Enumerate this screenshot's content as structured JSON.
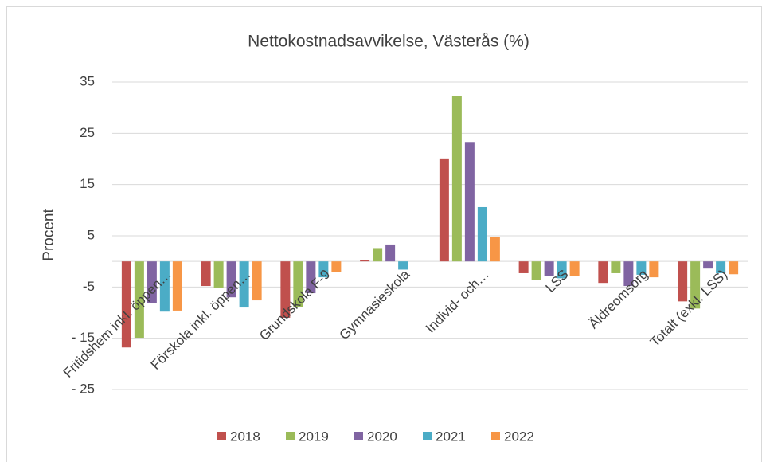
{
  "chart_data": {
    "type": "bar",
    "title": "Nettokostnadsavvikelse, Västerås (%)",
    "y_label": "Procent",
    "categories": [
      "Fritidshem inkl. öppen…",
      "Förskola inkl. öppen…",
      "Grundskola F-9",
      "Gymnasieskola",
      "Individ- och…",
      "LSS",
      "Äldreomsorg",
      "Totalt (exkl. LSS)"
    ],
    "series": [
      {
        "name": "2018",
        "color": "#c0504d",
        "values": [
          -16.8,
          -4.8,
          -11.0,
          0.3,
          20.1,
          -2.3,
          -4.2,
          -7.8
        ]
      },
      {
        "name": "2019",
        "color": "#9bbb59",
        "values": [
          -14.9,
          -5.1,
          -8.9,
          2.6,
          32.3,
          -3.6,
          -2.3,
          -9.2
        ]
      },
      {
        "name": "2020",
        "color": "#8064a2",
        "values": [
          -8.2,
          -7.0,
          -6.2,
          3.3,
          23.3,
          -2.8,
          -4.8,
          -1.4
        ]
      },
      {
        "name": "2021",
        "color": "#4bacc6",
        "values": [
          -9.8,
          -9.0,
          -3.1,
          -1.6,
          10.6,
          -3.3,
          -2.6,
          -2.3
        ]
      },
      {
        "name": "2022",
        "color": "#f79646",
        "values": [
          -9.6,
          -7.6,
          -2.0,
          0,
          4.7,
          -2.8,
          -3.1,
          -2.5
        ]
      }
    ],
    "ylim": [
      -25,
      35
    ],
    "yticks": [
      35,
      25,
      15,
      5,
      -5,
      {
        "value": -15,
        "label": "- 15"
      },
      {
        "value": -25,
        "label": "- 25"
      }
    ],
    "grid": true,
    "legend": "bottom"
  }
}
